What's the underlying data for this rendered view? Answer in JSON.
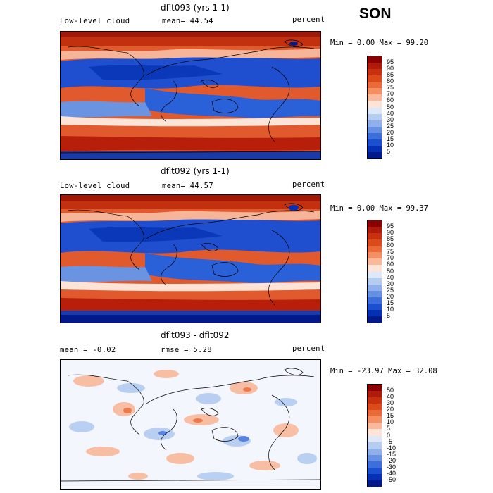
{
  "season": "SON",
  "panels": [
    {
      "title": "dflt093 (yrs 1-1)",
      "label": "Low-level cloud",
      "stat1": "mean=  44.54",
      "stat2": "",
      "units": "percent",
      "minmax": "Min =   0.00 Max =  99.20",
      "colorbar_labels": [
        "95",
        "90",
        "85",
        "80",
        "75",
        "70",
        "60",
        "50",
        "40",
        "30",
        "25",
        "20",
        "15",
        "10",
        "5"
      ]
    },
    {
      "title": "dflt092 (yrs 1-1)",
      "label": "Low-level cloud",
      "stat1": "mean=  44.57",
      "stat2": "",
      "units": "percent",
      "minmax": "Min =   0.00 Max =  99.37",
      "colorbar_labels": [
        "95",
        "90",
        "85",
        "80",
        "75",
        "70",
        "60",
        "50",
        "40",
        "30",
        "25",
        "20",
        "15",
        "10",
        "5"
      ]
    },
    {
      "title": "dflt093 - dflt092",
      "label": "mean =  -0.02",
      "stat1": "rmse =   5.28",
      "stat2": "",
      "units": "percent",
      "minmax": "Min = -23.97 Max =  32.08",
      "colorbar_labels": [
        "50",
        "40",
        "30",
        "20",
        "15",
        "10",
        "5",
        "0",
        "-5",
        "-10",
        "-15",
        "-20",
        "-30",
        "-40",
        "-50"
      ]
    }
  ],
  "colors": {
    "abs_scale": [
      "#8b0000",
      "#b01a0a",
      "#c8300f",
      "#dc4a1c",
      "#ea6a3a",
      "#f38f62",
      "#f9b99a",
      "#fde4d6",
      "#dde8f8",
      "#b6cdf2",
      "#8fb0ea",
      "#6690e2",
      "#3d6fdc",
      "#1a4fd0",
      "#0530b4",
      "#001a8c"
    ],
    "diff_scale": [
      "#8b0000",
      "#b01a0a",
      "#c8300f",
      "#dc4a1c",
      "#ea6a3a",
      "#f38f62",
      "#f9b99a",
      "#fde4d6",
      "#dde8f8",
      "#b6cdf2",
      "#8fb0ea",
      "#6690e2",
      "#3d6fdc",
      "#1a4fd0",
      "#0530b4",
      "#001a8c"
    ]
  }
}
